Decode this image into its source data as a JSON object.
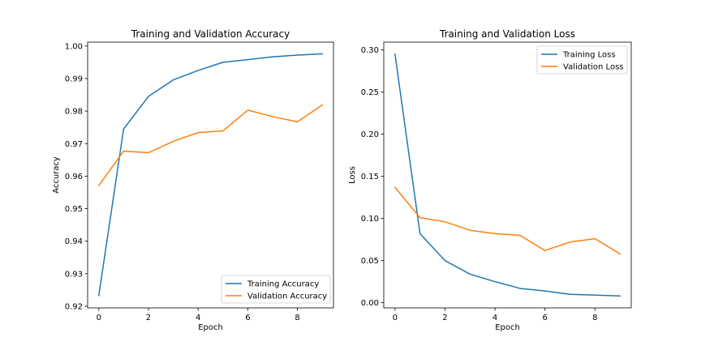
{
  "chart_data": [
    {
      "type": "line",
      "title": "Training and Validation Accuracy",
      "xlabel": "Epoch",
      "ylabel": "Accuracy",
      "xlim": [
        -0.45,
        9.45
      ],
      "ylim": [
        0.9195,
        1.0012
      ],
      "x_ticks": [
        0,
        2,
        4,
        6,
        8
      ],
      "y_ticks": [
        0.92,
        0.93,
        0.94,
        0.95,
        0.96,
        0.97,
        0.98,
        0.99,
        1.0
      ],
      "y_tick_labels": [
        "0.92",
        "0.93",
        "0.94",
        "0.95",
        "0.96",
        "0.97",
        "0.98",
        "0.99",
        "1.00"
      ],
      "grid": false,
      "legend_position": "lower-right",
      "x": [
        0,
        1,
        2,
        3,
        4,
        5,
        6,
        7,
        8,
        9
      ],
      "series": [
        {
          "name": "Training Accuracy",
          "color": "#1f77b4",
          "values": [
            0.9233,
            0.9745,
            0.9845,
            0.9896,
            0.9925,
            0.995,
            0.9958,
            0.9967,
            0.9972,
            0.9976
          ]
        },
        {
          "name": "Validation Accuracy",
          "color": "#ff7f0e",
          "values": [
            0.9571,
            0.9677,
            0.9672,
            0.9707,
            0.9734,
            0.9739,
            0.9803,
            0.9783,
            0.9767,
            0.9819
          ]
        }
      ]
    },
    {
      "type": "line",
      "title": "Training and Validation Loss",
      "xlabel": "Epoch",
      "ylabel": "Loss",
      "xlim": [
        -0.45,
        9.45
      ],
      "ylim": [
        -0.0061,
        0.3093
      ],
      "x_ticks": [
        0,
        2,
        4,
        6,
        8
      ],
      "y_ticks": [
        0.0,
        0.05,
        0.1,
        0.15,
        0.2,
        0.25,
        0.3
      ],
      "y_tick_labels": [
        "0.00",
        "0.05",
        "0.10",
        "0.15",
        "0.20",
        "0.25",
        "0.30"
      ],
      "grid": false,
      "legend_position": "upper-right",
      "x": [
        0,
        1,
        2,
        3,
        4,
        5,
        6,
        7,
        8,
        9
      ],
      "series": [
        {
          "name": "Training Loss",
          "color": "#1f77b4",
          "values": [
            0.295,
            0.082,
            0.05,
            0.034,
            0.025,
            0.017,
            0.014,
            0.01,
            0.009,
            0.008
          ]
        },
        {
          "name": "Validation Loss",
          "color": "#ff7f0e",
          "values": [
            0.137,
            0.101,
            0.096,
            0.086,
            0.082,
            0.08,
            0.062,
            0.072,
            0.076,
            0.058
          ]
        }
      ]
    }
  ]
}
